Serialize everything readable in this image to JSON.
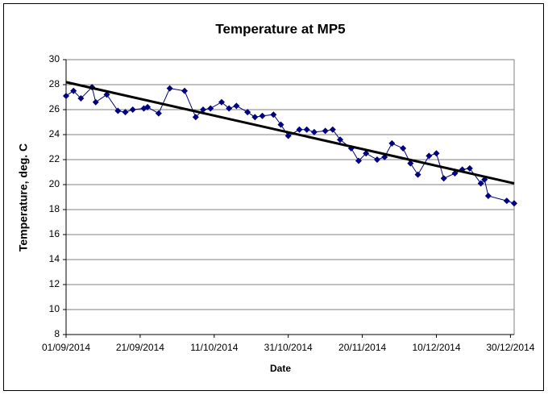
{
  "chart_data": {
    "type": "line",
    "title": "Temperature at MP5",
    "x_label": "Date",
    "y_label": "Temperature, deg. C",
    "x": [
      "2014-09-01",
      "2014-09-03",
      "2014-09-05",
      "2014-09-08",
      "2014-09-09",
      "2014-09-12",
      "2014-09-15",
      "2014-09-17",
      "2014-09-19",
      "2014-09-22",
      "2014-09-23",
      "2014-09-26",
      "2014-09-29",
      "2014-10-03",
      "2014-10-06",
      "2014-10-08",
      "2014-10-10",
      "2014-10-13",
      "2014-10-15",
      "2014-10-17",
      "2014-10-20",
      "2014-10-22",
      "2014-10-24",
      "2014-10-27",
      "2014-10-29",
      "2014-10-31",
      "2014-11-03",
      "2014-11-05",
      "2014-11-07",
      "2014-11-10",
      "2014-11-12",
      "2014-11-14",
      "2014-11-17",
      "2014-11-19",
      "2014-11-21",
      "2014-11-24",
      "2014-11-26",
      "2014-11-28",
      "2014-12-01",
      "2014-12-03",
      "2014-12-05",
      "2014-12-08",
      "2014-12-10",
      "2014-12-12",
      "2014-12-15",
      "2014-12-17",
      "2014-12-19",
      "2014-12-22",
      "2014-12-23",
      "2014-12-24",
      "2014-12-29",
      "2014-12-31"
    ],
    "series": [
      {
        "color": "#000080",
        "values": [
          27.1,
          27.5,
          26.9,
          27.8,
          26.6,
          27.2,
          25.9,
          25.8,
          26.0,
          26.1,
          26.2,
          25.7,
          27.7,
          27.5,
          25.4,
          26.0,
          26.1,
          26.6,
          26.1,
          26.3,
          25.8,
          25.4,
          25.5,
          25.6,
          24.8,
          23.9,
          24.4,
          24.4,
          24.2,
          24.3,
          24.4,
          23.6,
          22.9,
          21.9,
          22.5,
          22.0,
          22.2,
          23.3,
          22.9,
          21.7,
          20.8,
          22.3,
          22.5,
          20.5,
          20.9,
          21.2,
          21.3,
          20.1,
          20.4,
          19.1,
          18.7,
          18.5
        ]
      }
    ],
    "trendline": {
      "color": "#000000",
      "x": [
        "2014-09-01",
        "2014-12-31"
      ],
      "values": [
        28.2,
        20.1
      ]
    },
    "xlim": [
      "2014-09-01",
      "2014-12-31"
    ],
    "xticks": [
      {
        "value": "2014-09-01",
        "label": "01/09/2014"
      },
      {
        "value": "2014-09-21",
        "label": "21/09/2014"
      },
      {
        "value": "2014-10-11",
        "label": "11/10/2014"
      },
      {
        "value": "2014-10-31",
        "label": "31/10/2014"
      },
      {
        "value": "2014-11-20",
        "label": "20/11/2014"
      },
      {
        "value": "2014-12-10",
        "label": "10/12/2014"
      },
      {
        "value": "2014-12-30",
        "label": "30/12/2014"
      }
    ],
    "ylim": [
      8,
      30
    ],
    "yticks": [
      8,
      10,
      12,
      14,
      16,
      18,
      20,
      22,
      24,
      26,
      28,
      30
    ],
    "grid": true
  }
}
